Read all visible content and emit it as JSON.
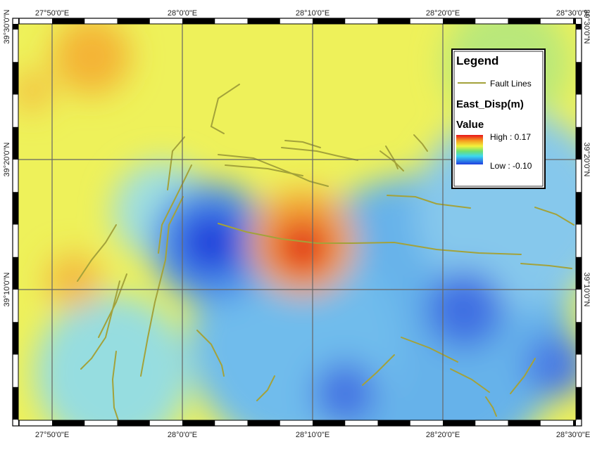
{
  "map": {
    "top_labels": [
      "27°50'0\"E",
      "28°0'0\"E",
      "28°10'0\"E",
      "28°20'0\"E",
      "28°30'0\"E"
    ],
    "bottom_labels": [
      "27°50'0\"E",
      "28°0'0\"E",
      "28°10'0\"E",
      "28°20'0\"E",
      "28°30'0\"E"
    ],
    "left_labels": [
      "39°30'0\"N",
      "39°20'0\"N",
      "39°10'0\"N"
    ],
    "right_labels": [
      "39°30'0\"N",
      "39°20'0\"N",
      "39°10'0\"N"
    ],
    "legend": {
      "title": "Legend",
      "fault_lines": "Fault Lines",
      "layer": "East_Disp(m)",
      "field": "Value",
      "high": "High : 0.17",
      "low": "Low : -0.10"
    }
  }
}
